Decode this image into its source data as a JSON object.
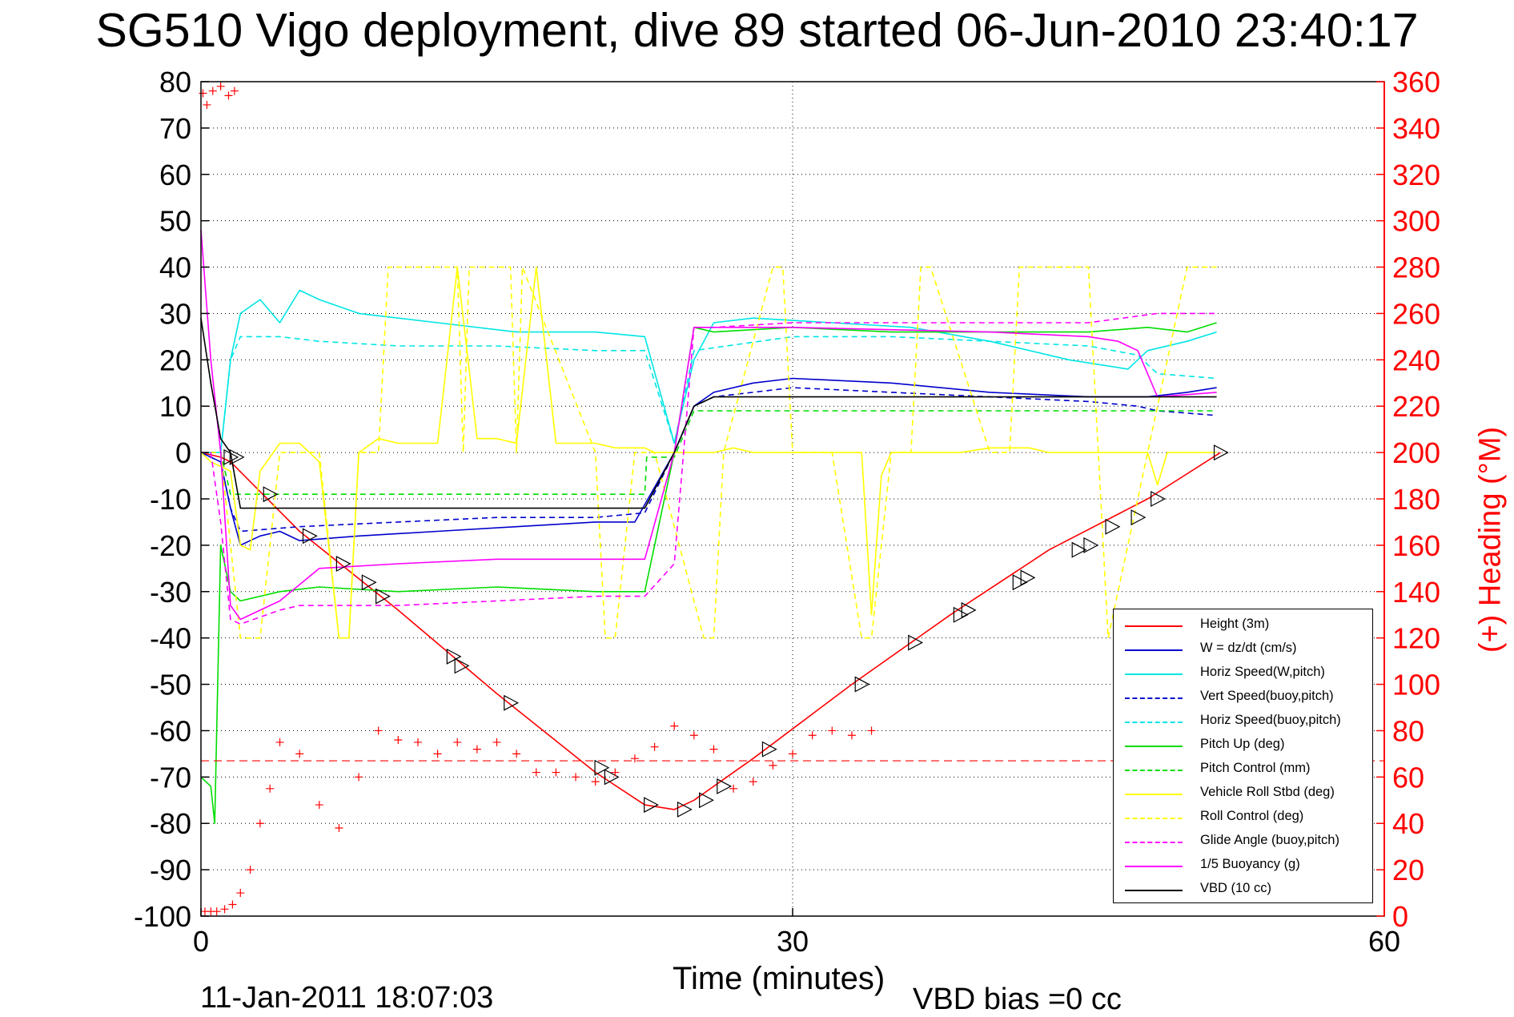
{
  "title": "SG510 Vigo deployment, dive 89 started 06-Jun-2010 23:40:17",
  "footer": {
    "date": "11-Jan-2011 18:07:03",
    "vbd_bias": "VBD bias =0 cc"
  },
  "chart_data": {
    "type": "line",
    "xlabel": "Time (minutes)",
    "ylabel": "",
    "y2label": "(+) Heading (°M)",
    "xlim": [
      0,
      60
    ],
    "ylim": [
      -100,
      80
    ],
    "y2lim": [
      0,
      360
    ],
    "xticks": [
      0,
      30,
      60
    ],
    "yticks": [
      -100,
      -90,
      -80,
      -70,
      -60,
      -50,
      -40,
      -30,
      -20,
      -10,
      0,
      10,
      20,
      30,
      40,
      50,
      60,
      70,
      80
    ],
    "y2ticks": [
      0,
      20,
      40,
      60,
      80,
      100,
      120,
      140,
      160,
      180,
      200,
      220,
      240,
      260,
      280,
      300,
      320,
      340,
      360
    ],
    "grid": true,
    "legend_position": "bottom-right",
    "colors": {
      "height": "#ff0000",
      "w": "#0000cc",
      "horiz_w": "#00e5e5",
      "vert_buoy": "#0000cc",
      "horiz_buoy": "#00e5e5",
      "pitch": "#00dd00",
      "pitch_control": "#00dd00",
      "roll": "#ffff00",
      "roll_control": "#ffff00",
      "glide": "#ff00ff",
      "buoyancy": "#ff00ff",
      "vbd": "#000000",
      "heading": "#ff0000"
    },
    "series": [
      {
        "name": "Height (3m)",
        "key": "height",
        "style": "solid",
        "x": [
          0,
          1,
          1.5,
          5,
          10,
          15,
          20,
          22.5,
          24,
          25,
          28,
          33,
          38,
          43,
          48,
          51.7
        ],
        "y": [
          0,
          -1,
          -2,
          -17,
          -34,
          -52,
          -69,
          -76,
          -77,
          -75,
          -66,
          -50,
          -35,
          -21,
          -10,
          0
        ]
      },
      {
        "name": "W = dz/dt (cm/s)",
        "key": "w",
        "style": "solid",
        "x": [
          0,
          1,
          1.5,
          2,
          3,
          4,
          5,
          8,
          12,
          16,
          20,
          22,
          24,
          25,
          26,
          28,
          30,
          35,
          40,
          45,
          48,
          50,
          51.5
        ],
        "y": [
          0,
          -2,
          -12,
          -20,
          -18,
          -17,
          -19,
          -18,
          -17,
          -16,
          -15,
          -15,
          0,
          10,
          13,
          15,
          16,
          15,
          13,
          12,
          12,
          13,
          14
        ]
      },
      {
        "name": "Horiz Speed(W,pitch)",
        "key": "horiz_w",
        "style": "solid",
        "x": [
          0,
          1,
          1.5,
          2,
          3,
          4,
          5,
          6,
          8,
          12,
          16,
          20,
          22.5,
          24,
          25,
          26,
          28,
          32,
          36,
          40,
          44,
          47,
          48,
          50,
          51.5
        ],
        "y": [
          0,
          0,
          20,
          30,
          33,
          28,
          35,
          33,
          30,
          28,
          26,
          26,
          25,
          2,
          20,
          28,
          29,
          28,
          27,
          24,
          20,
          18,
          22,
          24,
          26
        ]
      },
      {
        "name": "Vert Speed(buoy,pitch)",
        "key": "vert_buoy",
        "style": "dashed",
        "x": [
          0,
          1,
          1.5,
          2,
          5,
          10,
          15,
          20,
          22.5,
          24,
          25,
          26,
          30,
          35,
          40,
          45,
          47.5,
          48.5,
          51.5
        ],
        "y": [
          0,
          -2,
          -12,
          -17,
          -16,
          -15,
          -14,
          -14,
          -13,
          0,
          10,
          12,
          14,
          13,
          12,
          11,
          10,
          9,
          8
        ]
      },
      {
        "name": "Horiz Speed(buoy,pitch)",
        "key": "horiz_buoy",
        "style": "dashed",
        "x": [
          0,
          1,
          1.5,
          2,
          4,
          6,
          10,
          15,
          20,
          22.5,
          24,
          25,
          30,
          35,
          40,
          45,
          47.5,
          48.5,
          51.5
        ],
        "y": [
          0,
          0,
          20,
          25,
          25,
          24,
          23,
          23,
          22,
          22,
          2,
          22,
          25,
          25,
          24,
          23,
          21,
          17,
          16
        ]
      },
      {
        "name": "Pitch Up (deg)",
        "key": "pitch",
        "style": "solid",
        "x": [
          0,
          0.5,
          0.7,
          1,
          1.5,
          2,
          4,
          6,
          10,
          15,
          20,
          22.5,
          24,
          25,
          26,
          30,
          35,
          40,
          45,
          48,
          50,
          51.5
        ],
        "y": [
          -70,
          -72,
          -80,
          -20,
          -30,
          -32,
          -30,
          -29,
          -30,
          -29,
          -30,
          -30,
          0,
          27,
          26,
          27,
          26,
          26,
          26,
          27,
          26,
          28
        ]
      },
      {
        "name": "Pitch Control (mm)",
        "key": "pitch_control",
        "style": "dashed",
        "x": [
          0,
          1,
          1.5,
          2,
          10,
          20,
          22.5,
          22.6,
          24,
          25,
          26,
          30,
          40,
          51.5
        ],
        "y": [
          0,
          0,
          -9,
          -9,
          -9,
          -9,
          -9,
          -1,
          -1,
          9,
          9,
          9,
          9,
          9
        ]
      },
      {
        "name": "Vehicle Roll Stbd (deg)",
        "key": "roll",
        "style": "solid",
        "x": [
          0,
          0.5,
          1,
          1.5,
          2,
          2.5,
          3,
          4,
          5,
          6,
          7,
          7.5,
          8,
          9,
          10,
          12,
          13,
          14,
          15,
          16,
          17,
          18,
          20,
          21,
          22,
          22.5,
          23,
          24,
          25,
          26,
          27,
          28,
          29,
          30,
          32,
          33.5,
          34,
          34.5,
          35,
          36,
          37,
          38,
          38.5,
          40,
          42,
          43,
          44,
          45,
          46,
          47,
          48,
          48.5,
          49,
          50,
          51,
          51.5
        ],
        "y": [
          0,
          -2,
          -3,
          -4,
          -20,
          -21,
          -4,
          2,
          2,
          -2,
          -40,
          -40,
          0,
          3,
          2,
          2,
          40,
          3,
          3,
          2,
          40,
          2,
          2,
          1,
          1,
          1,
          0,
          0,
          0,
          0,
          1,
          0,
          0,
          0,
          0,
          0,
          -35,
          -5,
          0,
          0,
          0,
          0,
          0,
          1,
          1,
          0,
          0,
          0,
          0,
          0,
          0,
          -7,
          0,
          0,
          0,
          0
        ]
      },
      {
        "name": "Roll Control (deg)",
        "key": "roll_control",
        "style": "dashed",
        "x": [
          0,
          1,
          2,
          3,
          4,
          5,
          5.5,
          6,
          7,
          7.5,
          8,
          9,
          9.5,
          13,
          13.3,
          13.6,
          15.7,
          16,
          16.3,
          20,
          20.5,
          21,
          22,
          22.5,
          23,
          25.5,
          26,
          26.5,
          29,
          29.5,
          30,
          32,
          33.5,
          34,
          35,
          36,
          36.5,
          37,
          40,
          41,
          41.5,
          45,
          45.5,
          46,
          50,
          51.5
        ],
        "y": [
          0,
          0,
          -40,
          -40,
          0,
          0,
          0,
          0,
          -40,
          -40,
          0,
          0,
          40,
          40,
          0,
          40,
          40,
          0,
          40,
          0,
          -40,
          -40,
          0,
          0,
          0,
          -40,
          -40,
          0,
          40,
          40,
          0,
          0,
          -40,
          -40,
          0,
          0,
          40,
          40,
          0,
          0,
          40,
          40,
          0,
          -40,
          40,
          40
        ]
      },
      {
        "name": "Glide Angle (buoy,pitch)",
        "key": "glide",
        "style": "dashed",
        "x": [
          0,
          0.5,
          1,
          1.5,
          2,
          4,
          5,
          10,
          15,
          20,
          22.5,
          24,
          25,
          26,
          30,
          40,
          45,
          48.5,
          50,
          51.5
        ],
        "y": [
          0,
          0,
          -15,
          -36,
          -37,
          -34,
          -33,
          -33,
          -32,
          -31,
          -31,
          -24,
          27,
          27,
          28,
          28,
          28,
          30,
          30,
          30
        ]
      },
      {
        "name": "1/5 Buoyancy (g)",
        "key": "buoyancy",
        "style": "solid",
        "x": [
          0,
          0.5,
          1,
          1.5,
          2,
          4,
          6,
          10,
          15,
          20,
          22.5,
          24,
          25,
          26,
          30,
          40,
          45,
          46.5,
          47.5,
          48.5,
          51.5
        ],
        "y": [
          48,
          20,
          0,
          -33,
          -36,
          -32,
          -25,
          -24,
          -23,
          -23,
          -23,
          0,
          27,
          27,
          27,
          26,
          25,
          24,
          22,
          12,
          13
        ]
      },
      {
        "name": "VBD (10 cc)",
        "key": "vbd",
        "style": "solid",
        "x": [
          0,
          0.5,
          1,
          1.5,
          2,
          10,
          20,
          22.5,
          24,
          25,
          26,
          30,
          40,
          51.5
        ],
        "y": [
          29,
          15,
          3,
          0,
          -12,
          -12,
          -12,
          -12,
          0,
          10,
          12,
          12,
          12,
          12
        ]
      }
    ],
    "heading": {
      "name": "heading",
      "x": [
        0.2,
        0.5,
        0.8,
        1.2,
        1.6,
        2,
        2.5,
        3,
        3.5,
        4,
        5,
        6,
        7,
        8,
        9,
        10,
        11,
        12,
        13,
        14,
        15,
        16,
        17,
        18,
        19,
        20,
        21,
        22,
        23,
        24,
        25,
        26,
        27,
        28,
        29,
        30,
        31,
        32,
        33,
        34
      ],
      "y": [
        2,
        2,
        2,
        3,
        5,
        10,
        20,
        40,
        55,
        75,
        70,
        48,
        38,
        60,
        80,
        76,
        75,
        70,
        75,
        72,
        75,
        70,
        62,
        62,
        60,
        58,
        62,
        68,
        73,
        82,
        78,
        72,
        55,
        58,
        65,
        70,
        78,
        80,
        78,
        80
      ],
      "dashed_reference": 67
    },
    "markers": {
      "x": [
        1.5,
        1.8,
        3.5,
        5.5,
        7.2,
        8.5,
        9.2,
        12.8,
        13.2,
        15.7,
        20.3,
        20.8,
        22.8,
        24.5,
        25.6,
        26.5,
        28.8,
        33.5,
        36.2,
        38.5,
        38.9,
        41.5,
        41.9,
        44.5,
        45.1,
        46.2,
        47.5,
        48.5,
        51.7
      ],
      "y": [
        -1,
        -1,
        -9,
        -18,
        -24,
        -28,
        -31,
        -44,
        -46,
        -54,
        -68,
        -70,
        -76,
        -77,
        -75,
        -72,
        -64,
        -50,
        -41,
        -35,
        -34,
        -28,
        -27,
        -21,
        -20,
        -16,
        -14,
        -10,
        0
      ]
    },
    "heading_extra": {
      "x": [
        0.1,
        0.3,
        0.6,
        1.0,
        1.4,
        1.7
      ],
      "y": [
        355,
        350,
        356,
        358,
        354,
        356
      ]
    }
  }
}
